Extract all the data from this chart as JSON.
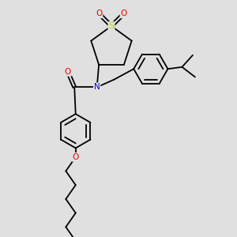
{
  "bg_color": "#e0e0e0",
  "atom_colors": {
    "C": "#000000",
    "N": "#0000ee",
    "O": "#ee0000",
    "S": "#cccc00"
  },
  "bond_color": "#000000",
  "bond_width": 1.3,
  "figsize": [
    3.0,
    3.0
  ],
  "dpi": 100,
  "xlim": [
    0,
    10
  ],
  "ylim": [
    0,
    10
  ]
}
